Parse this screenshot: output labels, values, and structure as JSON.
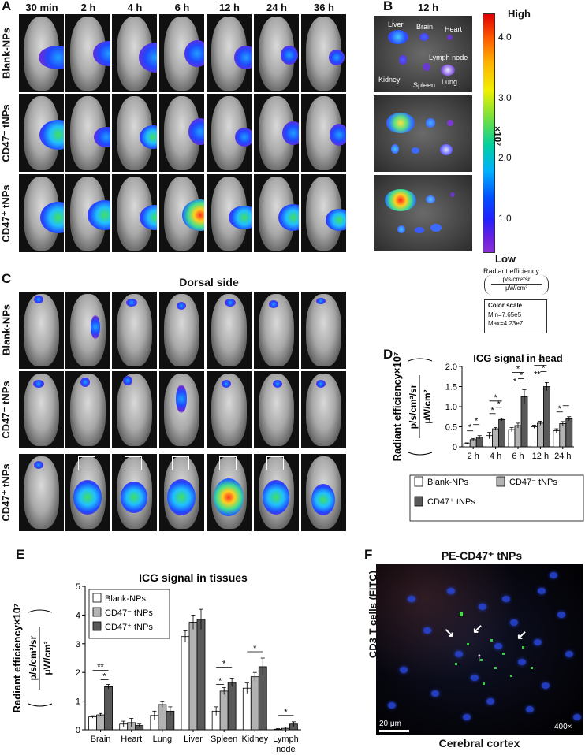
{
  "panels": {
    "A": "A",
    "B": "B",
    "C": "C",
    "D": "D",
    "E": "E",
    "F": "F"
  },
  "panel_a": {
    "time_labels": [
      "30 min",
      "2 h",
      "4 h",
      "6 h",
      "12 h",
      "24 h",
      "36 h"
    ],
    "row_labels": [
      "Blank-NPs",
      "CD47⁻ tNPs",
      "CD47⁺ tNPs"
    ]
  },
  "panel_b": {
    "title": "12 h",
    "organ_labels": [
      "Liver",
      "Brain",
      "Heart",
      "Lymph node",
      "Kidney",
      "Spleen",
      "Lung"
    ]
  },
  "colorbar": {
    "high": "High",
    "low": "Low",
    "ticks": [
      "4.0",
      "3.0",
      "2.0",
      "1.0"
    ],
    "multiplier": "×10⁷",
    "caption_1": "Radiant efficiency",
    "caption_2": "p/s/cm²/sr",
    "caption_3": "μW/cm²",
    "scale_title": "Color scale",
    "scale_min": "Min=7.65e5",
    "scale_max": "Max=4.23e7"
  },
  "panel_c": {
    "title": "Dorsal side",
    "row_labels": [
      "Blank-NPs",
      "CD47⁻ tNPs",
      "CD47⁺ tNPs"
    ]
  },
  "panel_f": {
    "title": "PE-CD47⁺ tNPs",
    "ylabel": "CD3 T cells (FITC)",
    "xlabel": "Cerebral cortex",
    "scale_bar": "20 μm",
    "magnification": "400×"
  },
  "chart_data": [
    {
      "id": "D",
      "type": "bar",
      "title": "ICG signal in head",
      "ylabel_1": "Radiant efficiency×10⁷",
      "ylabel_2": "p/s/cm²/sr",
      "ylabel_3": "μW/cm²",
      "categories": [
        "2 h",
        "4 h",
        "6 h",
        "12 h",
        "24 h"
      ],
      "ylim": [
        0,
        2.0
      ],
      "yticks": [
        "0",
        "0.5",
        "1.0",
        "1.5",
        "2.0"
      ],
      "series": [
        {
          "name": "Blank-NPs",
          "color": "#ffffff",
          "values": [
            0.08,
            0.28,
            0.43,
            0.5,
            0.4
          ],
          "errors": [
            0.02,
            0.08,
            0.05,
            0.04,
            0.05
          ]
        },
        {
          "name": "CD47⁻ tNPs",
          "color": "#b3b3b3",
          "values": [
            0.18,
            0.45,
            0.53,
            0.59,
            0.58
          ],
          "errors": [
            0.03,
            0.03,
            0.06,
            0.05,
            0.05
          ]
        },
        {
          "name": "CD47⁺ tNPs",
          "color": "#595959",
          "values": [
            0.24,
            0.68,
            1.25,
            1.5,
            0.7
          ],
          "errors": [
            0.04,
            0.03,
            0.17,
            0.1,
            0.05
          ]
        }
      ],
      "significance": [
        "*",
        "*",
        "*",
        "*",
        "*",
        "*",
        "*",
        "*",
        "**",
        "*",
        "*",
        "*"
      ],
      "legend_position": "bottom"
    },
    {
      "id": "E",
      "type": "bar",
      "title": "ICG signal in tissues",
      "ylabel_1": "Radiant efficiency×10⁷",
      "ylabel_2": "p/s/cm²/sr",
      "ylabel_3": "μW/cm²",
      "categories": [
        "Brain",
        "Heart",
        "Lung",
        "Liver",
        "Spleen",
        "Kidney",
        "Lymph node"
      ],
      "ylim": [
        0,
        5
      ],
      "yticks": [
        "0",
        "1",
        "2",
        "3",
        "4",
        "5"
      ],
      "series": [
        {
          "name": "Blank-NPs",
          "color": "#ffffff",
          "values": [
            0.45,
            0.2,
            0.5,
            3.25,
            0.65,
            1.45,
            0.02
          ],
          "errors": [
            0.04,
            0.1,
            0.15,
            0.2,
            0.15,
            0.18,
            0.02
          ]
        },
        {
          "name": "CD47⁻ tNPs",
          "color": "#b3b3b3",
          "values": [
            0.52,
            0.25,
            0.88,
            3.75,
            1.35,
            1.85,
            0.05
          ],
          "errors": [
            0.05,
            0.15,
            0.1,
            0.25,
            0.12,
            0.15,
            0.04
          ]
        },
        {
          "name": "CD47⁺ tNPs",
          "color": "#595959",
          "values": [
            1.5,
            0.15,
            0.65,
            3.85,
            1.65,
            2.2,
            0.2
          ],
          "errors": [
            0.08,
            0.05,
            0.15,
            0.35,
            0.15,
            0.3,
            0.08
          ]
        }
      ],
      "significance": [
        "**",
        "*",
        "*",
        "*",
        "*",
        "*"
      ],
      "legend_position": "top-left"
    }
  ]
}
